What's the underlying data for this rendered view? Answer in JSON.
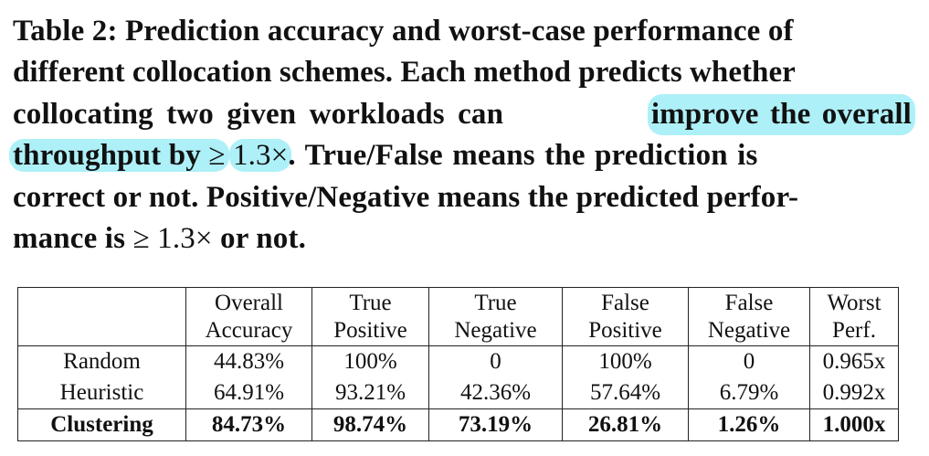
{
  "caption": {
    "line1": "Table 2: Prediction accuracy and worst-case performance of",
    "line2": "different collocation schemes. Each method predicts whether",
    "line3_pre": "collocating two given workloads can",
    "line3_hl": "improve the overall",
    "line4_hl_a": "throughput by",
    "line4_hl_ge": "≥",
    "line4_hl_b": "1.3×",
    "line4_post": ". True/False means the prediction is",
    "line5": "correct or not. Positive/Negative means the predicted perfor-",
    "line6_pre": "mance is",
    "line6_math": "≥ 1.3×",
    "line6_post": "or not.",
    "highlight_color": "#aef0f8"
  },
  "table": {
    "headers": [
      {
        "l1": "",
        "l2": ""
      },
      {
        "l1": "Overall",
        "l2": "Accuracy"
      },
      {
        "l1": "True",
        "l2": "Positive"
      },
      {
        "l1": "True",
        "l2": "Negative"
      },
      {
        "l1": "False",
        "l2": "Positive"
      },
      {
        "l1": "False",
        "l2": "Negative"
      },
      {
        "l1": "Worst",
        "l2": "Perf."
      }
    ],
    "rows": [
      {
        "method": "Random",
        "cells": [
          "44.83%",
          "100%",
          "0",
          "100%",
          "0",
          "0.965x"
        ]
      },
      {
        "method": "Heuristic",
        "cells": [
          "64.91%",
          "93.21%",
          "42.36%",
          "57.64%",
          "6.79%",
          "0.992x"
        ]
      },
      {
        "method": "Clustering",
        "cells": [
          "84.73%",
          "98.74%",
          "73.19%",
          "26.81%",
          "1.26%",
          "1.000x"
        ]
      }
    ]
  }
}
